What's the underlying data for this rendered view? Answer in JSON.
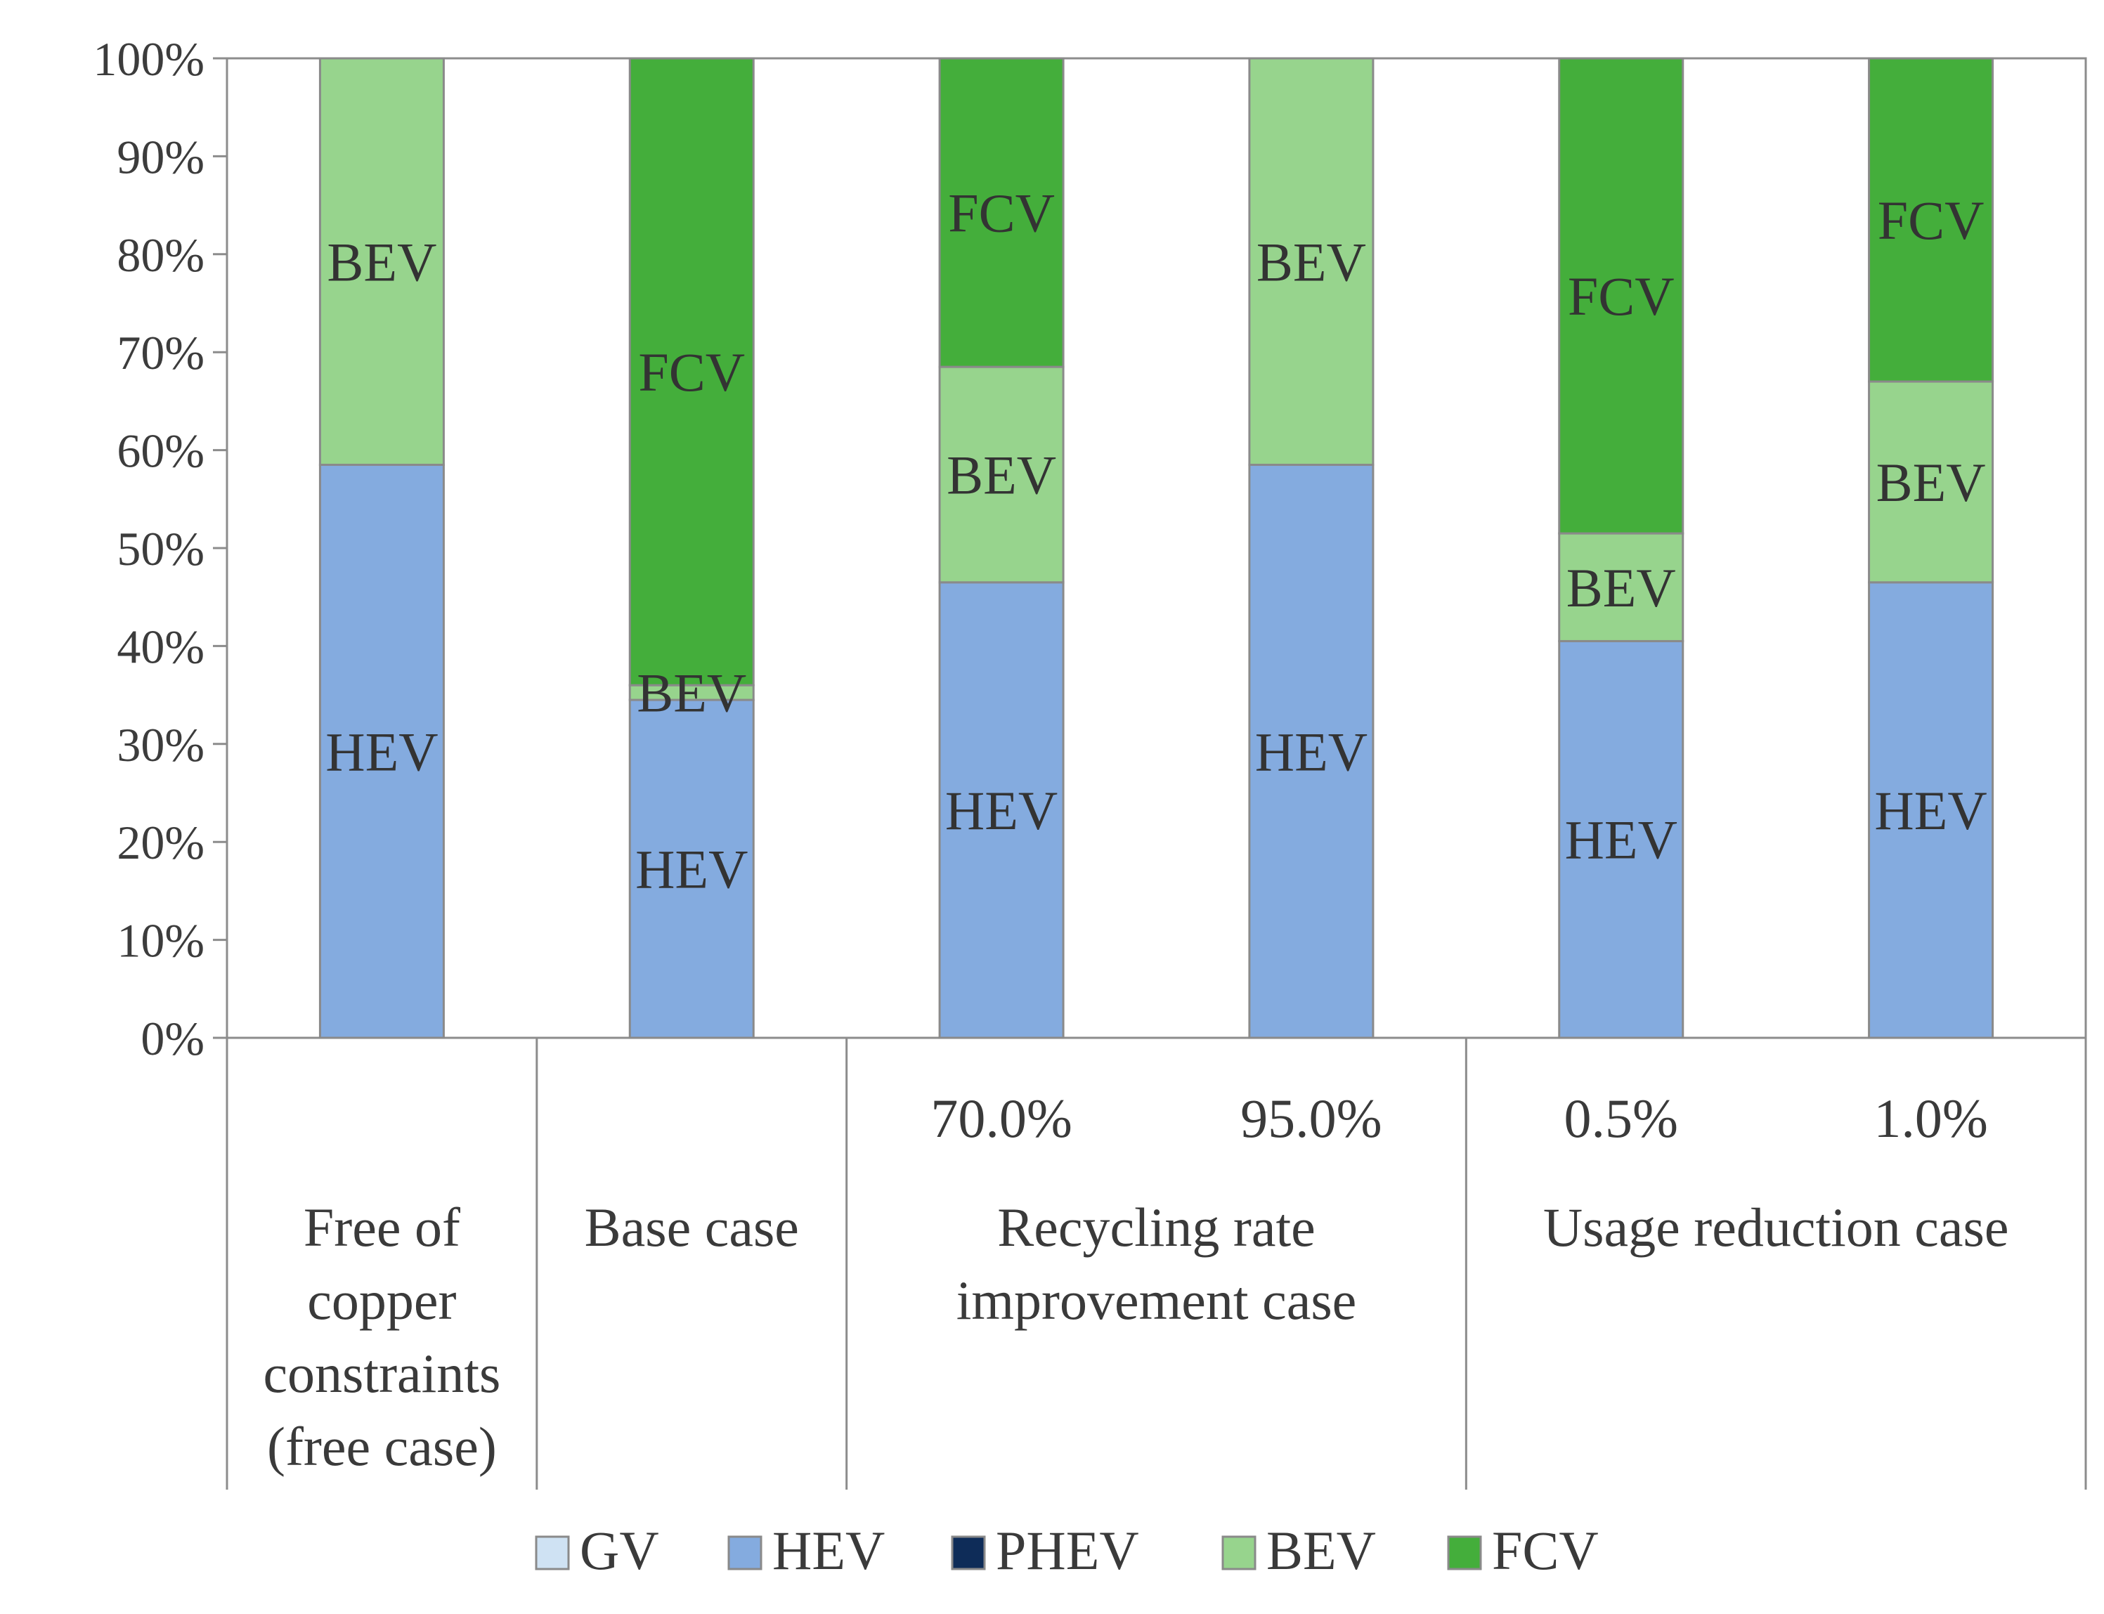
{
  "chart_data": {
    "type": "bar",
    "stacked": true,
    "percent": true,
    "ylim": [
      0,
      100
    ],
    "yticks": [
      0,
      10,
      20,
      30,
      40,
      50,
      60,
      70,
      80,
      90,
      100
    ],
    "ytick_suffix": "%",
    "grid": false,
    "legend_position": "bottom",
    "categories": [
      "free",
      "base",
      "rec70",
      "rec95",
      "use05",
      "use10"
    ],
    "sub_labels": [
      "",
      "",
      "70.0%",
      "95.0%",
      "0.5%",
      "1.0%"
    ],
    "groups": [
      {
        "label": [
          "Free of",
          "copper",
          "constraints",
          "(free case)"
        ],
        "span": [
          0,
          0
        ]
      },
      {
        "label": [
          "Base case"
        ],
        "span": [
          1,
          1
        ]
      },
      {
        "label": [
          "Recycling rate",
          "improvement case"
        ],
        "span": [
          2,
          3
        ]
      },
      {
        "label": [
          "Usage reduction case"
        ],
        "span": [
          4,
          5
        ]
      }
    ],
    "series": [
      {
        "name": "GV",
        "color": "#cfe2f3",
        "values": [
          0,
          0,
          0,
          0,
          0,
          0
        ]
      },
      {
        "name": "HEV",
        "color": "#84abdf",
        "values": [
          58.5,
          34.5,
          46.5,
          58.5,
          40.5,
          46.5
        ]
      },
      {
        "name": "PHEV",
        "color": "#0e2c58",
        "values": [
          0,
          0,
          0,
          0,
          0,
          0
        ]
      },
      {
        "name": "BEV",
        "color": "#97d48d",
        "values": [
          41.5,
          1.5,
          22.0,
          41.5,
          11.0,
          20.5
        ]
      },
      {
        "name": "FCV",
        "color": "#44ae3b",
        "values": [
          0,
          64.0,
          31.5,
          0,
          48.5,
          33.0
        ]
      }
    ]
  }
}
